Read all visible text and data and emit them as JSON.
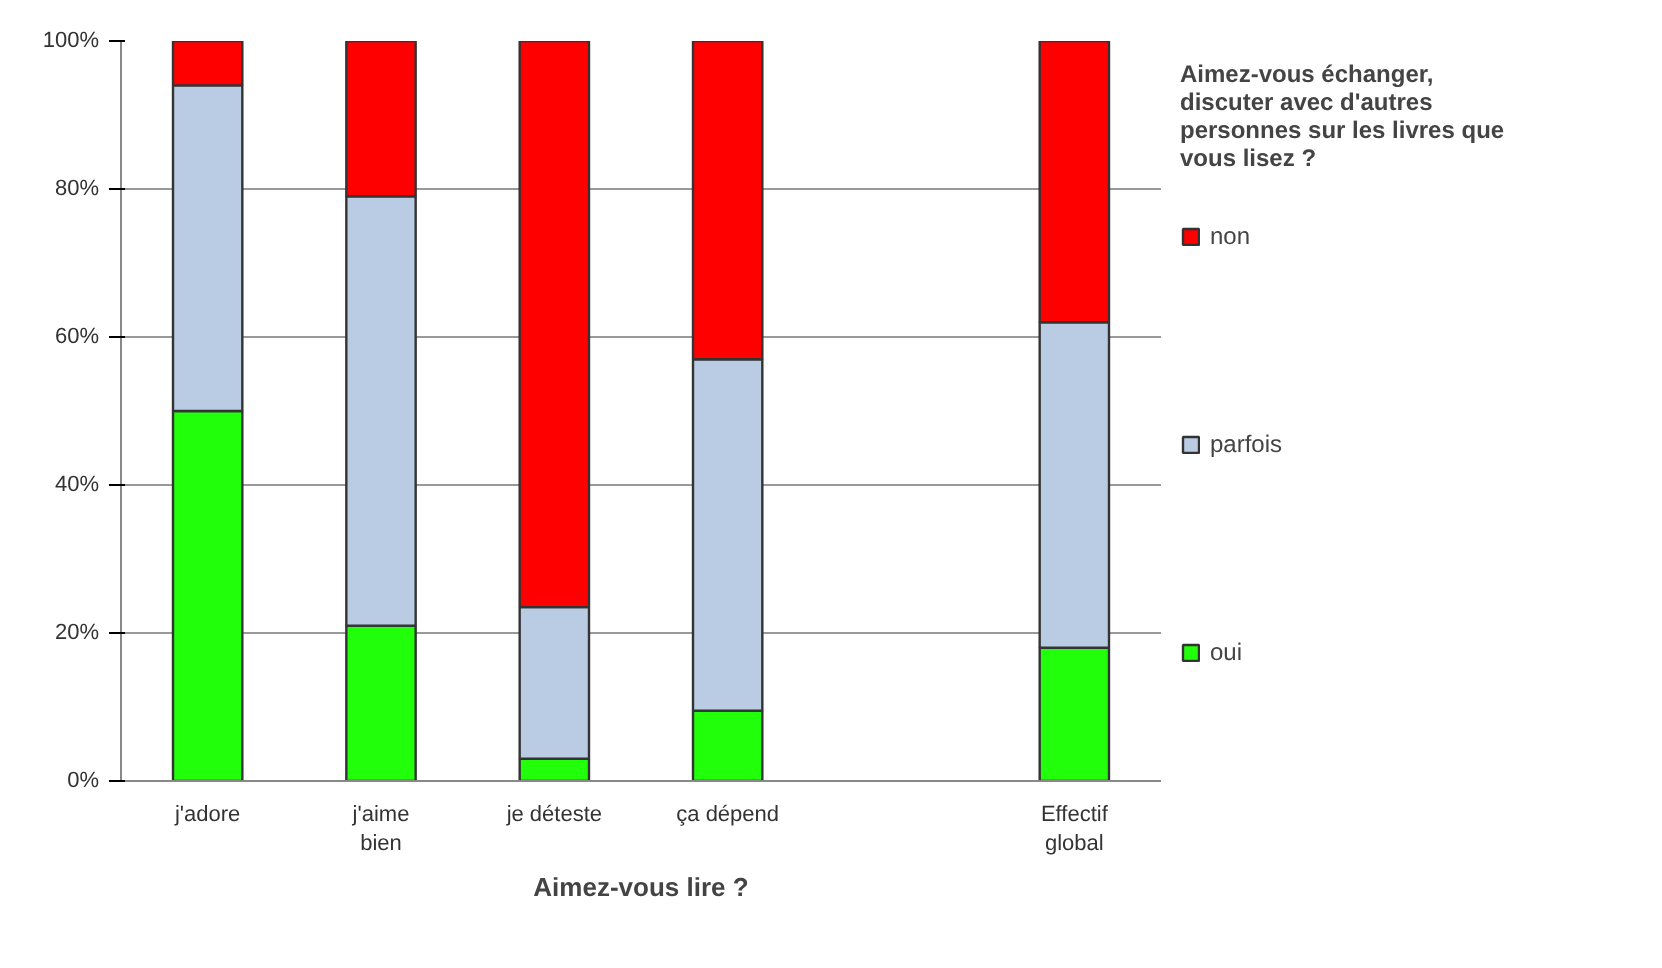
{
  "chart_data": {
    "type": "bar",
    "stacked": true,
    "xlabel": "Aimez-vous lire ?",
    "legend_title": "Aimez-vous échanger, discuter avec d'autres personnes sur les livres que vous lisez ?",
    "categories": [
      "j'adore",
      "j'aime bien",
      "je déteste",
      "ça dépend",
      null,
      "Effectif global"
    ],
    "series": [
      {
        "name": "oui",
        "color": "#22ff0a",
        "values": [
          50,
          21,
          3,
          9.5,
          null,
          18
        ]
      },
      {
        "name": "parfois",
        "color": "#b9cce4",
        "values": [
          44,
          58,
          20.5,
          47.5,
          null,
          44
        ]
      },
      {
        "name": "non",
        "color": "#ff0000",
        "values": [
          6,
          21,
          76.5,
          43,
          null,
          38
        ]
      }
    ],
    "ylim": [
      0,
      100
    ],
    "yticks": [
      {
        "value": 0,
        "label": "0%"
      },
      {
        "value": 20,
        "label": "20%"
      },
      {
        "value": 40,
        "label": "40%"
      },
      {
        "value": 60,
        "label": "60%"
      },
      {
        "value": 80,
        "label": "80%"
      },
      {
        "value": 100,
        "label": "100%"
      }
    ],
    "grid": "y",
    "legend": "right"
  }
}
